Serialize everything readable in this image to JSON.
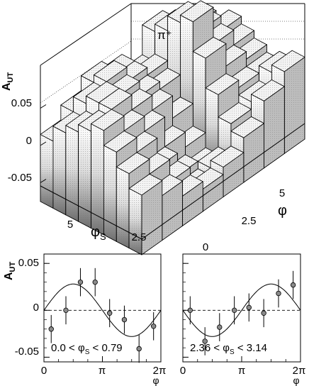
{
  "chart_data": [
    {
      "type": "bar3d",
      "particle_label": "π⁺",
      "zlabel_main": "A",
      "zlabel_sub": "UT",
      "xlabel_main": "φ",
      "xlabel_sub": "S",
      "ylabel": "φ",
      "z_ticks": [
        "0.05",
        "0",
        "-0.05"
      ],
      "z_tick_values": [
        0.05,
        0,
        -0.05
      ],
      "x_ticks": [
        "5",
        "2.5"
      ],
      "y_ticks": [
        "5",
        "2.5",
        "0"
      ],
      "x_bins": 8,
      "y_bins": 8,
      "zlim": [
        -0.08,
        0.1
      ],
      "heights": [
        [
          0.01,
          0.03,
          0.05,
          0.04,
          0.02,
          0.06,
          0.04,
          0.03
        ],
        [
          0.03,
          0.05,
          0.06,
          0.04,
          0.03,
          0.07,
          0.05,
          0.02
        ],
        [
          0.04,
          0.06,
          0.05,
          0.03,
          0.02,
          0.09,
          0.06,
          0.04
        ],
        [
          0.05,
          0.06,
          0.04,
          0.02,
          -0.01,
          0.1,
          0.05,
          0.03
        ],
        [
          0.06,
          0.04,
          0.02,
          -0.02,
          -0.04,
          0.06,
          0.03,
          0.02
        ],
        [
          0.04,
          0.02,
          -0.02,
          -0.05,
          -0.06,
          0.02,
          0.01,
          0.01
        ],
        [
          0.02,
          0.0,
          -0.03,
          -0.06,
          -0.05,
          -0.01,
          0.0,
          0.02
        ],
        [
          0.0,
          -0.02,
          -0.04,
          -0.05,
          -0.04,
          -0.02,
          0.01,
          0.03
        ]
      ]
    },
    {
      "type": "scatter",
      "ylabel_main": "A",
      "ylabel_sub": "UT",
      "xlabel": "φ",
      "range_label": "0.0 < φ",
      "range_label_sub": "S",
      "range_label_end": " < 0.79",
      "x_ticks": [
        "0",
        "π",
        "2π"
      ],
      "x_tick_values": [
        0,
        3.14159,
        6.28318
      ],
      "y_ticks": [
        "0.05",
        "0",
        "-0.05"
      ],
      "y_tick_values": [
        0.05,
        0,
        -0.05
      ],
      "xlim": [
        0,
        6.28318
      ],
      "ylim": [
        -0.055,
        0.06
      ],
      "x": [
        0.39,
        1.18,
        1.96,
        2.75,
        3.53,
        4.32,
        5.11,
        5.89
      ],
      "y": [
        -0.02,
        0.0,
        0.03,
        0.03,
        -0.003,
        -0.01,
        -0.041,
        -0.017
      ],
      "err": [
        0.015,
        0.015,
        0.015,
        0.015,
        0.015,
        0.015,
        0.015,
        0.015
      ],
      "fit": {
        "amplitude": 0.028,
        "phase": 0.0,
        "form": "A*sin(x)"
      }
    },
    {
      "type": "scatter",
      "xlabel": "φ",
      "range_label": "2.36 < φ",
      "range_label_sub": "S",
      "range_label_end": " < 3.14",
      "x_ticks": [
        "0",
        "π",
        "2π"
      ],
      "x_tick_values": [
        0,
        3.14159,
        6.28318
      ],
      "xlim": [
        0,
        6.28318
      ],
      "ylim": [
        -0.055,
        0.06
      ],
      "x": [
        0.39,
        1.18,
        1.96,
        2.75,
        3.53,
        4.32,
        5.11,
        5.89
      ],
      "y": [
        0.0,
        -0.033,
        -0.018,
        0.0,
        0.003,
        -0.003,
        0.018,
        0.027
      ],
      "err": [
        0.015,
        0.015,
        0.015,
        0.015,
        0.015,
        0.015,
        0.015,
        0.015
      ],
      "fit": {
        "amplitude": -0.028,
        "phase": 0.0,
        "form": "A*sin(x)"
      }
    }
  ]
}
